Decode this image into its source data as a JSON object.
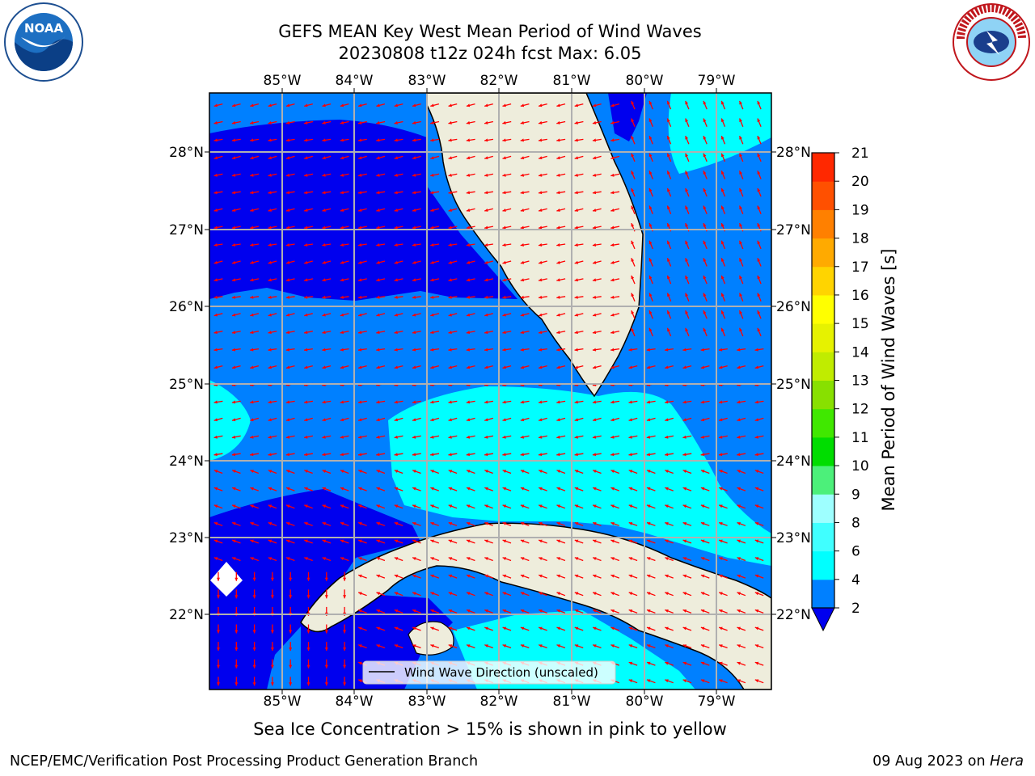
{
  "header": {
    "title_line1": "GEFS MEAN Key West Mean Period of Wind Waves",
    "title_line2": "20230808 t12z 024h fcst   Max: 6.05"
  },
  "logos": {
    "left": "noaa-logo",
    "right": "nws-logo"
  },
  "map": {
    "lon_labels": [
      "85°W",
      "84°W",
      "83°W",
      "82°W",
      "81°W",
      "80°W",
      "79°W"
    ],
    "lat_labels": [
      "28°N",
      "27°N",
      "26°N",
      "25°N",
      "24°N",
      "23°N",
      "22°N"
    ],
    "legend_label": "Wind Wave Direction (unscaled)",
    "colors": {
      "land": "#eeeddc",
      "ocean_2_4": "#0000ee",
      "ocean_4_6": "#0080ff",
      "ocean_6_8": "#00ffff",
      "arrow": "#ff0000",
      "grid": "#b0b0b0"
    }
  },
  "colorbar": {
    "title": "Mean Period of Wind Waves [s]",
    "ticks": [
      "2",
      "4",
      "6",
      "8",
      "9",
      "10",
      "11",
      "12",
      "13",
      "14",
      "15",
      "16",
      "17",
      "18",
      "19",
      "20",
      "21"
    ],
    "colors": [
      "#0080ff",
      "#00ffff",
      "#40ffff",
      "#9effff",
      "#4cf07a",
      "#00dd00",
      "#40e800",
      "#88e000",
      "#c0ec00",
      "#e6f200",
      "#ffff00",
      "#ffd400",
      "#ffaa00",
      "#ff8000",
      "#ff5000",
      "#ff2800",
      "#ff0000"
    ]
  },
  "footer": {
    "caption": "Sea Ice Concentration > 15% is shown in pink to yellow",
    "left": "NCEP/EMC/Verification Post Processing Product Generation Branch",
    "right_date": "09 Aug 2023 on ",
    "right_machine": "Hera"
  }
}
